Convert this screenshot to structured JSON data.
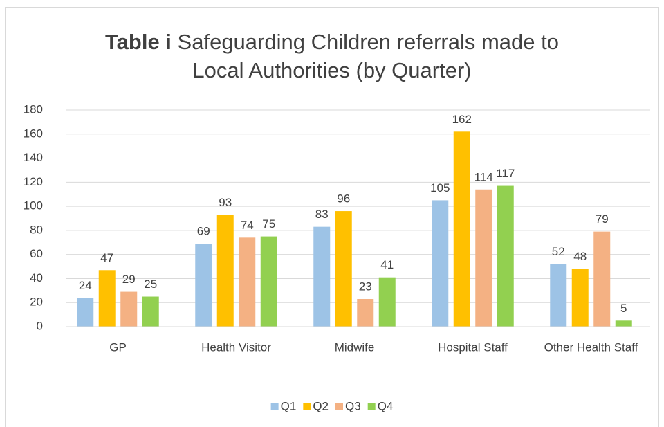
{
  "chart_data": {
    "type": "bar",
    "title_prefix": "Table i",
    "title": "Safeguarding Children referrals made to Local Authorities (by Quarter)",
    "categories": [
      "GP",
      "Health Visitor",
      "Midwife",
      "Hospital Staff",
      "Other Health Staff"
    ],
    "series": [
      {
        "name": "Q1",
        "color": "#9dc3e6",
        "values": [
          24,
          69,
          83,
          105,
          52
        ]
      },
      {
        "name": "Q2",
        "color": "#ffc000",
        "values": [
          47,
          93,
          96,
          162,
          48
        ]
      },
      {
        "name": "Q3",
        "color": "#f4b183",
        "values": [
          29,
          74,
          23,
          114,
          79
        ]
      },
      {
        "name": "Q4",
        "color": "#92d050",
        "values": [
          25,
          75,
          41,
          117,
          5
        ]
      }
    ],
    "ylim": [
      0,
      180
    ],
    "yticks": [
      0,
      20,
      40,
      60,
      80,
      100,
      120,
      140,
      160,
      180
    ],
    "grid": true,
    "legend": "bottom"
  }
}
